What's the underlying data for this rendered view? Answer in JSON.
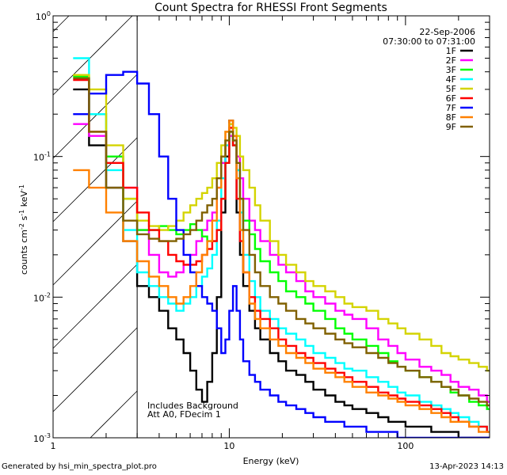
{
  "chart_data": {
    "type": "line",
    "title": "Count Spectra for RHESSI Front Segments",
    "xlabel": "Energy (keV)",
    "ylabel_main": "counts cm",
    "ylabel_parts": [
      "-2",
      " s",
      "-1",
      " keV",
      "-1"
    ],
    "x_scale": "log",
    "y_scale": "log",
    "xlim": [
      1,
      300
    ],
    "ylim": [
      0.001,
      1
    ],
    "x_ticks": [
      {
        "value": 1,
        "label": "1"
      },
      {
        "value": 10,
        "label": "10"
      },
      {
        "value": 100,
        "label": "100"
      }
    ],
    "y_ticks": [
      {
        "value": 0.001,
        "base": "10",
        "exp": "-3"
      },
      {
        "value": 0.01,
        "base": "10",
        "exp": "-2"
      },
      {
        "value": 0.1,
        "base": "10",
        "exp": "-1"
      },
      {
        "value": 1,
        "base": "10",
        "exp": "0"
      }
    ],
    "date": "22-Sep-2006",
    "time_range": "07:30:00 to 07:31:00",
    "annotation_lines": [
      "Includes Background",
      "Att A0, FDecim 1"
    ],
    "shaded_region_kev": [
      1,
      3
    ],
    "x": [
      1.3,
      1.6,
      2.0,
      2.5,
      3.0,
      3.5,
      4.0,
      4.5,
      5.0,
      5.5,
      6.0,
      6.5,
      7.0,
      7.5,
      8.0,
      8.5,
      9.0,
      9.5,
      10.0,
      10.5,
      11.0,
      11.5,
      12.0,
      13.0,
      14.0,
      15.0,
      17.0,
      19.0,
      21.0,
      24.0,
      27.0,
      30.0,
      35.0,
      40.0,
      45.0,
      50.0,
      60.0,
      70.0,
      80.0,
      90.0,
      100.0,
      120.0,
      140.0,
      160.0,
      180.0,
      200.0,
      230.0,
      260.0,
      290.0
    ],
    "series": [
      {
        "name": "1F",
        "color": "#000000",
        "values": [
          0.3,
          0.12,
          0.06,
          0.025,
          0.012,
          0.01,
          0.008,
          0.006,
          0.005,
          0.004,
          0.003,
          0.0022,
          0.0018,
          0.0025,
          0.004,
          0.01,
          0.04,
          0.1,
          0.18,
          0.12,
          0.04,
          0.02,
          0.012,
          0.008,
          0.006,
          0.005,
          0.004,
          0.0035,
          0.003,
          0.0028,
          0.0025,
          0.0022,
          0.002,
          0.0018,
          0.0017,
          0.0016,
          0.0015,
          0.0014,
          0.0013,
          0.0013,
          0.0012,
          0.0012,
          0.0011,
          0.0011,
          0.0011,
          0.001,
          0.001,
          0.001,
          0.001
        ]
      },
      {
        "name": "2F",
        "color": "#ff00ff",
        "values": [
          0.17,
          0.14,
          0.1,
          0.06,
          0.03,
          0.02,
          0.015,
          0.014,
          0.015,
          0.017,
          0.02,
          0.025,
          0.03,
          0.035,
          0.04,
          0.06,
          0.09,
          0.12,
          0.14,
          0.13,
          0.1,
          0.07,
          0.05,
          0.035,
          0.03,
          0.025,
          0.02,
          0.017,
          0.015,
          0.013,
          0.011,
          0.01,
          0.009,
          0.008,
          0.0075,
          0.007,
          0.006,
          0.005,
          0.0045,
          0.004,
          0.0036,
          0.0032,
          0.003,
          0.0028,
          0.0025,
          0.0023,
          0.0022,
          0.002,
          0.0018
        ]
      },
      {
        "name": "3F",
        "color": "#00ff00",
        "values": [
          0.37,
          0.2,
          0.1,
          0.05,
          0.03,
          0.03,
          0.032,
          0.03,
          0.028,
          0.03,
          0.033,
          0.03,
          0.027,
          0.025,
          0.025,
          0.03,
          0.05,
          0.09,
          0.15,
          0.12,
          0.08,
          0.05,
          0.035,
          0.028,
          0.022,
          0.018,
          0.015,
          0.013,
          0.011,
          0.01,
          0.009,
          0.008,
          0.007,
          0.006,
          0.0055,
          0.005,
          0.0045,
          0.004,
          0.0035,
          0.0032,
          0.003,
          0.0027,
          0.0025,
          0.0023,
          0.0021,
          0.002,
          0.0018,
          0.0017,
          0.0016
        ]
      },
      {
        "name": "4F",
        "color": "#00ffff",
        "values": [
          0.5,
          0.2,
          0.08,
          0.03,
          0.015,
          0.012,
          0.01,
          0.009,
          0.008,
          0.009,
          0.01,
          0.012,
          0.014,
          0.016,
          0.02,
          0.035,
          0.07,
          0.12,
          0.17,
          0.14,
          0.08,
          0.04,
          0.02,
          0.013,
          0.01,
          0.008,
          0.007,
          0.006,
          0.0055,
          0.005,
          0.0045,
          0.004,
          0.0037,
          0.0034,
          0.0031,
          0.003,
          0.0027,
          0.0025,
          0.0023,
          0.0021,
          0.002,
          0.0018,
          0.0017,
          0.0016,
          0.0015,
          0.0014,
          0.0013,
          0.0012,
          0.0011
        ]
      },
      {
        "name": "5F",
        "color": "#d4d400",
        "values": [
          0.38,
          0.3,
          0.12,
          0.05,
          0.035,
          0.032,
          0.03,
          0.032,
          0.035,
          0.04,
          0.045,
          0.05,
          0.055,
          0.06,
          0.07,
          0.09,
          0.12,
          0.15,
          0.17,
          0.16,
          0.14,
          0.1,
          0.08,
          0.06,
          0.045,
          0.035,
          0.025,
          0.02,
          0.017,
          0.015,
          0.013,
          0.012,
          0.011,
          0.01,
          0.009,
          0.0085,
          0.008,
          0.007,
          0.0065,
          0.006,
          0.0055,
          0.005,
          0.0045,
          0.004,
          0.0038,
          0.0036,
          0.0034,
          0.0032,
          0.003
        ]
      },
      {
        "name": "6F",
        "color": "#ff0000",
        "values": [
          0.35,
          0.15,
          0.09,
          0.06,
          0.04,
          0.03,
          0.025,
          0.02,
          0.018,
          0.017,
          0.017,
          0.018,
          0.02,
          0.022,
          0.025,
          0.03,
          0.05,
          0.09,
          0.16,
          0.12,
          0.05,
          0.025,
          0.015,
          0.01,
          0.008,
          0.007,
          0.006,
          0.005,
          0.0045,
          0.004,
          0.0037,
          0.0034,
          0.0031,
          0.0029,
          0.0027,
          0.0025,
          0.0023,
          0.0021,
          0.002,
          0.0019,
          0.0018,
          0.0017,
          0.0016,
          0.0015,
          0.0014,
          0.0013,
          0.0012,
          0.0012,
          0.0011
        ]
      },
      {
        "name": "7F",
        "color": "#0000ff",
        "values": [
          0.2,
          0.28,
          0.38,
          0.4,
          0.33,
          0.2,
          0.1,
          0.05,
          0.03,
          0.02,
          0.015,
          0.012,
          0.01,
          0.009,
          0.008,
          0.006,
          0.004,
          0.005,
          0.008,
          0.012,
          0.008,
          0.005,
          0.0035,
          0.0028,
          0.0025,
          0.0022,
          0.002,
          0.0018,
          0.0017,
          0.0016,
          0.0015,
          0.0014,
          0.0013,
          0.0013,
          0.0012,
          0.0012,
          0.0011,
          0.0011,
          0.0011,
          0.001,
          0.001,
          0.001,
          0.001,
          0.001,
          0.001,
          0.001,
          0.001,
          0.001,
          0.001
        ]
      },
      {
        "name": "8F",
        "color": "#ff8000",
        "values": [
          0.08,
          0.06,
          0.04,
          0.025,
          0.018,
          0.014,
          0.012,
          0.01,
          0.009,
          0.01,
          0.012,
          0.015,
          0.02,
          0.025,
          0.035,
          0.06,
          0.1,
          0.15,
          0.18,
          0.14,
          0.07,
          0.03,
          0.015,
          0.009,
          0.007,
          0.006,
          0.005,
          0.0045,
          0.004,
          0.0037,
          0.0034,
          0.0031,
          0.0029,
          0.0027,
          0.0025,
          0.0023,
          0.0021,
          0.002,
          0.0019,
          0.0018,
          0.0017,
          0.0016,
          0.0015,
          0.0014,
          0.0013,
          0.0013,
          0.0012,
          0.0011,
          0.0011
        ]
      },
      {
        "name": "9F",
        "color": "#806000",
        "values": [
          0.36,
          0.15,
          0.06,
          0.035,
          0.028,
          0.026,
          0.025,
          0.025,
          0.026,
          0.028,
          0.03,
          0.035,
          0.04,
          0.045,
          0.05,
          0.07,
          0.1,
          0.13,
          0.15,
          0.13,
          0.09,
          0.05,
          0.03,
          0.02,
          0.015,
          0.012,
          0.01,
          0.009,
          0.008,
          0.007,
          0.0065,
          0.006,
          0.0055,
          0.005,
          0.0047,
          0.0044,
          0.004,
          0.0037,
          0.0034,
          0.0032,
          0.003,
          0.0027,
          0.0025,
          0.0023,
          0.0022,
          0.002,
          0.0019,
          0.0018,
          0.0017
        ]
      }
    ]
  },
  "footer": {
    "generated_by": "Generated by hsi_min_spectra_plot.pro",
    "timestamp": "13-Apr-2023 14:13"
  }
}
